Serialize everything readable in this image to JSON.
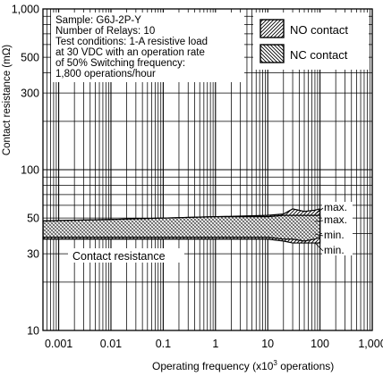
{
  "chart_data": {
    "type": "area",
    "xscale": "log",
    "yscale": "log",
    "xlim": [
      0.0005,
      1000
    ],
    "ylim": [
      10,
      1000
    ],
    "x_ticks": [
      {
        "value": 0.001,
        "label": "0.001"
      },
      {
        "value": 0.01,
        "label": "0.01"
      },
      {
        "value": 0.1,
        "label": "0.1"
      },
      {
        "value": 1,
        "label": "1"
      },
      {
        "value": 10,
        "label": "10"
      },
      {
        "value": 100,
        "label": "100"
      },
      {
        "value": 1000,
        "label": "1,000"
      }
    ],
    "y_ticks": [
      {
        "value": 10,
        "label": "10"
      },
      {
        "value": 30,
        "label": "30"
      },
      {
        "value": 50,
        "label": "50"
      },
      {
        "value": 100,
        "label": "100"
      },
      {
        "value": 300,
        "label": "300"
      },
      {
        "value": 500,
        "label": "500"
      },
      {
        "value": 1000,
        "label": "1,000"
      }
    ],
    "grid": true,
    "xlabel_text": "Operating frequency (x10",
    "xlabel_sup": "3",
    "xlabel_tail": " operations)",
    "ylabel": "Contact resistance (mΩ)",
    "notes": [
      "Sample: G6J-2P-Y",
      "Number of Relays: 10",
      "Test conditions: 1-A resistive load",
      "at 30 VDC with an operation rate",
      "of 50% Switching frequency:",
      "1,800 operations/hour"
    ],
    "legend": [
      {
        "name": "NO contact",
        "pattern": "diagonal-up"
      },
      {
        "name": "NC contact",
        "pattern": "diagonal-down"
      }
    ],
    "series": [
      {
        "name": "NO contact",
        "x": [
          0.0005,
          0.01,
          0.1,
          1,
          10,
          20,
          30,
          50,
          80,
          100
        ],
        "max": [
          48,
          49,
          50,
          51,
          52,
          53,
          57,
          55,
          56,
          57
        ],
        "min": [
          37,
          37,
          37,
          37,
          37,
          36,
          35,
          35,
          35,
          35
        ]
      },
      {
        "name": "NC contact",
        "x": [
          0.0005,
          0.01,
          0.1,
          1,
          10,
          20,
          30,
          50,
          80,
          100
        ],
        "max": [
          48,
          49,
          50,
          51,
          51,
          52,
          52,
          52,
          52,
          52
        ],
        "min": [
          38,
          38,
          38,
          38,
          38,
          37,
          37,
          36,
          37,
          38
        ]
      }
    ],
    "annotations": [
      {
        "text": "max.",
        "at": [
          100,
          60
        ]
      },
      {
        "text": "max.",
        "at": [
          100,
          51
        ]
      },
      {
        "text": "min.",
        "at": [
          100,
          41
        ]
      },
      {
        "text": "min.",
        "at": [
          100,
          34
        ]
      },
      {
        "text": "Contact resistance",
        "at": [
          0.003,
          31
        ]
      }
    ]
  }
}
